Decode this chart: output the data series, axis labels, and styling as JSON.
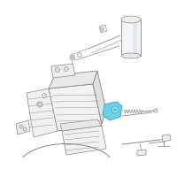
{
  "background_color": "#ffffff",
  "line_color": "#888888",
  "line_color_dark": "#555555",
  "highlight_color": "#3ab8c8",
  "highlight_fill": "#70cfe0",
  "fig_width": 2.0,
  "fig_height": 2.0,
  "dpi": 100
}
